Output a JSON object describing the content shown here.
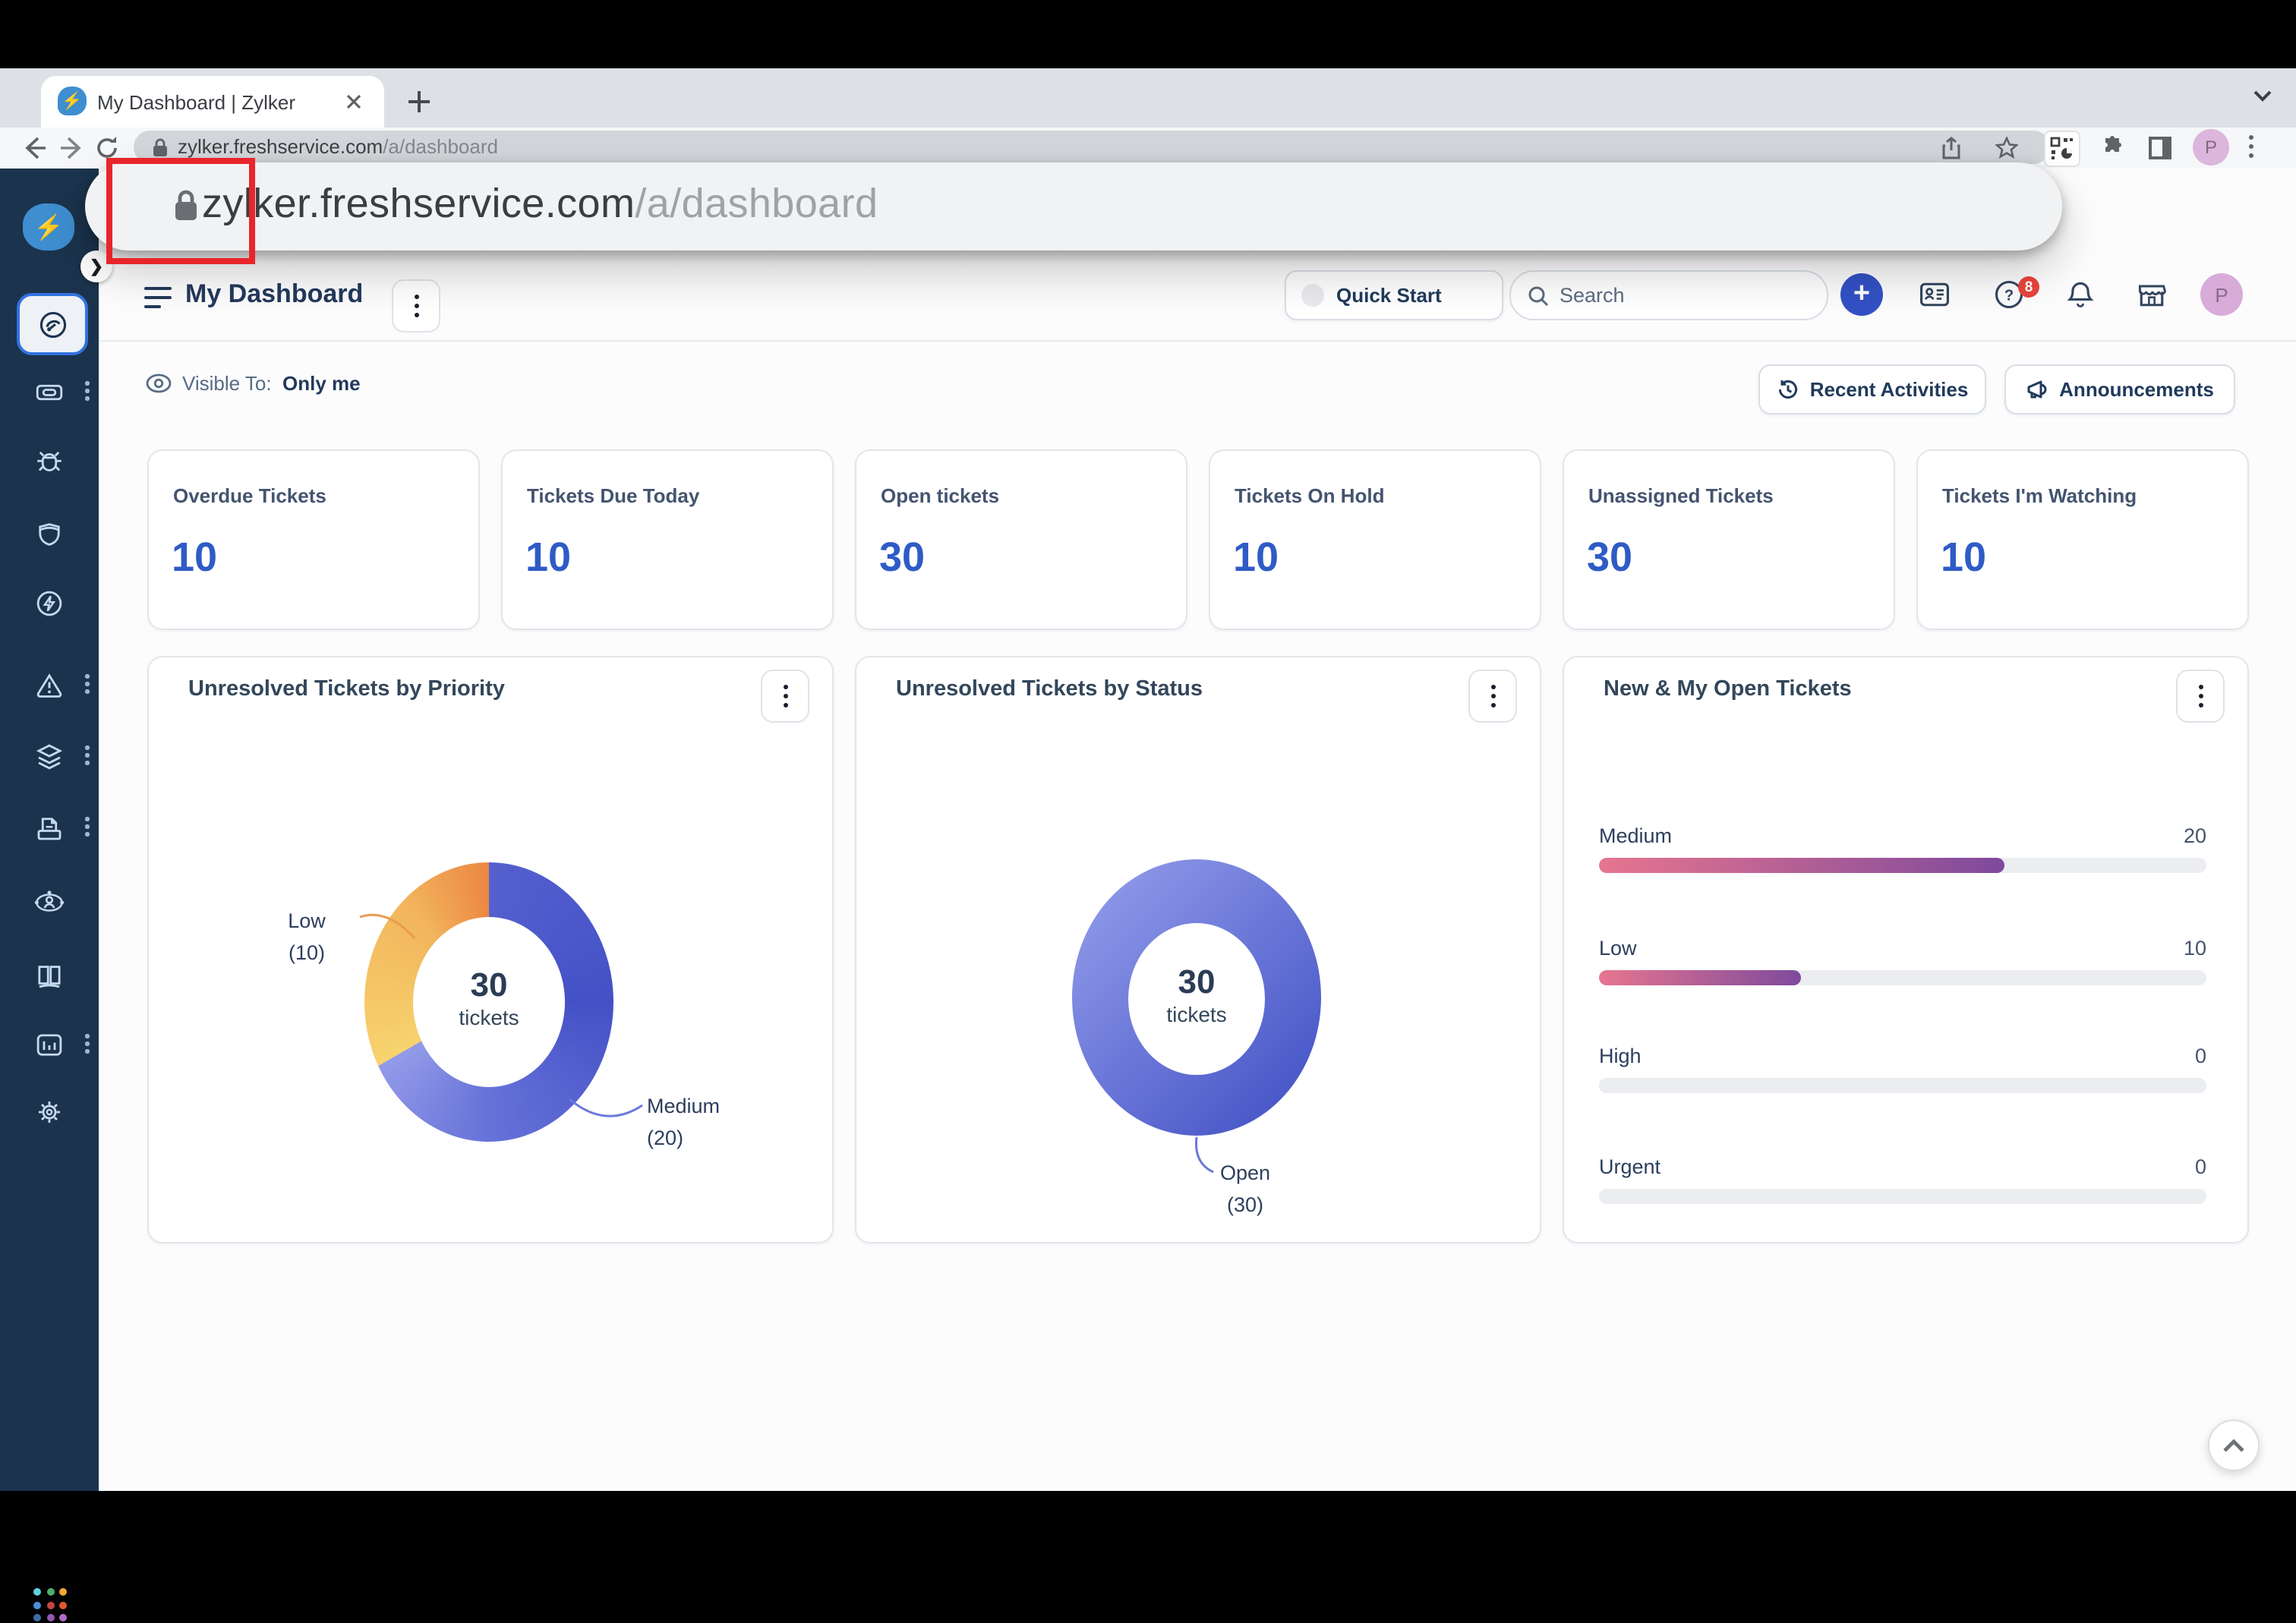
{
  "browser": {
    "tab_title": "My Dashboard | Zylker",
    "url_domain": "zylker.freshservice.com",
    "url_path": "/a/dashboard",
    "profile_initial": "P",
    "favicon_glyph": "⚡"
  },
  "url_overlay": {
    "domain": "zylker.freshservice.com",
    "path": "/a/dashboard",
    "highlighted_word": "zylker",
    "highlight_color": "#e8252a"
  },
  "sidebar": {
    "items": [
      "dashboard",
      "tickets",
      "bugs",
      "security",
      "automation",
      "alerts",
      "layers",
      "assets",
      "service-catalog",
      "knowledge-base",
      "analytics",
      "admin",
      "freshworks-switcher"
    ]
  },
  "header": {
    "title": "My Dashboard",
    "quick_start_label": "Quick Start",
    "search_placeholder": "Search",
    "notifications_badge": "8",
    "profile_initial": "P"
  },
  "subheader": {
    "visible_to_label": "Visible To:",
    "visible_to_value": "Only me",
    "recent_activities_label": "Recent Activities",
    "announcements_label": "Announcements"
  },
  "stat_cards": [
    {
      "label": "Overdue Tickets",
      "value": "10"
    },
    {
      "label": "Tickets Due Today",
      "value": "10"
    },
    {
      "label": "Open tickets",
      "value": "30"
    },
    {
      "label": "Tickets On Hold",
      "value": "10"
    },
    {
      "label": "Unassigned Tickets",
      "value": "30"
    },
    {
      "label": "Tickets I'm Watching",
      "value": "10"
    }
  ],
  "panels": {
    "priority": {
      "title": "Unresolved Tickets by Priority",
      "center_value": "30",
      "center_unit": "tickets",
      "label_low": "Low",
      "label_low_count": "(10)",
      "label_medium": "Medium",
      "label_medium_count": "(20)"
    },
    "status": {
      "title": "Unresolved Tickets by Status",
      "center_value": "30",
      "center_unit": "tickets",
      "label_open": "Open",
      "label_open_count": "(30)"
    },
    "open_tickets": {
      "title": "New & My Open Tickets",
      "rows": [
        {
          "label": "Medium",
          "value": "20"
        },
        {
          "label": "Low",
          "value": "10"
        },
        {
          "label": "High",
          "value": "0"
        },
        {
          "label": "Urgent",
          "value": "0"
        }
      ]
    }
  },
  "scroll_top_icon": "chevron-up",
  "colors": {
    "accent_blue": "#2c5cc5",
    "sidebar_navy": "#1b334d",
    "donut_blue_dark": "#4451c6",
    "donut_blue_light": "#939be9",
    "donut_orange": "#ec8743",
    "donut_yellow": "#f7d36e",
    "bar_gradient_start": "#e7758f",
    "bar_gradient_end": "#7e4a9c",
    "badge_red": "#e8453c"
  },
  "chart_data": [
    {
      "type": "pie",
      "title": "Unresolved Tickets by Priority",
      "labels": [
        "Medium",
        "Low"
      ],
      "values": [
        20,
        10
      ],
      "center_text": "30 tickets",
      "legend_position": "callout"
    },
    {
      "type": "pie",
      "title": "Unresolved Tickets by Status",
      "labels": [
        "Open"
      ],
      "values": [
        30
      ],
      "center_text": "30 tickets",
      "legend_position": "callout"
    },
    {
      "type": "bar",
      "title": "New & My Open Tickets",
      "categories": [
        "Medium",
        "Low",
        "High",
        "Urgent"
      ],
      "values": [
        20,
        10,
        0,
        0
      ],
      "xlim": [
        0,
        30
      ],
      "orientation": "horizontal"
    }
  ]
}
